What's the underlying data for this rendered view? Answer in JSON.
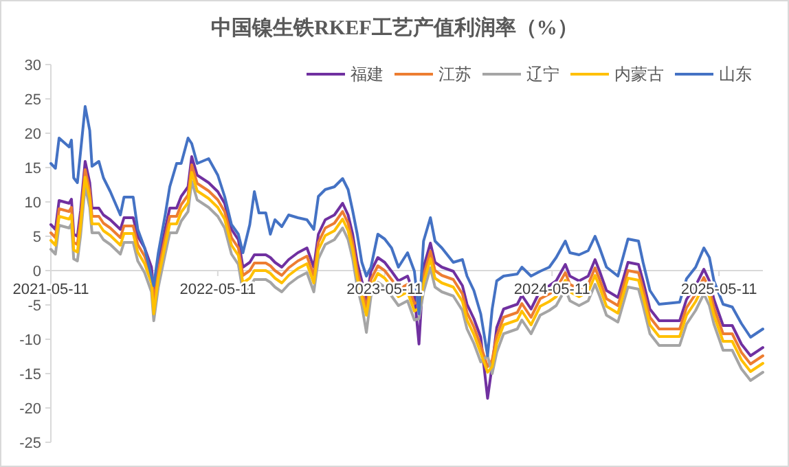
{
  "chart_data": {
    "type": "line",
    "title": "中国镍生铁RKEF工艺产值利润率（%）",
    "x": [
      "2021-05-11",
      "2021-05-21",
      "2021-05-29",
      "2021-06-20",
      "2021-06-25",
      "2021-06-30",
      "2021-07-08",
      "2021-07-15",
      "2021-07-25",
      "2021-08-04",
      "2021-08-09",
      "2021-08-24",
      "2021-09-03",
      "2021-09-18",
      "2021-10-10",
      "2021-10-18",
      "2021-11-07",
      "2021-11-17",
      "2021-12-02",
      "2021-12-17",
      "2021-12-22",
      "2022-01-01",
      "2022-01-16",
      "2022-01-26",
      "2022-02-10",
      "2022-02-20",
      "2022-03-07",
      "2022-03-15",
      "2022-03-27",
      "2022-04-21",
      "2022-05-11",
      "2022-05-26",
      "2022-06-10",
      "2022-06-25",
      "2022-07-05",
      "2022-07-20",
      "2022-07-30",
      "2022-08-09",
      "2022-08-24",
      "2022-09-03",
      "2022-09-13",
      "2022-09-28",
      "2022-10-13",
      "2022-11-02",
      "2022-11-22",
      "2022-12-07",
      "2022-12-17",
      "2023-01-01",
      "2023-01-21",
      "2023-02-08",
      "2023-02-20",
      "2023-03-02",
      "2023-03-12",
      "2023-03-22",
      "2023-04-01",
      "2023-04-11",
      "2023-04-26",
      "2023-05-11",
      "2023-05-26",
      "2023-06-10",
      "2023-06-30",
      "2023-07-15",
      "2023-07-25",
      "2023-08-04",
      "2023-08-19",
      "2023-08-29",
      "2023-09-13",
      "2023-10-08",
      "2023-10-28",
      "2023-11-07",
      "2023-11-22",
      "2023-12-07",
      "2023-12-22",
      "2024-01-01",
      "2024-01-11",
      "2024-01-26",
      "2024-02-25",
      "2024-03-06",
      "2024-03-26",
      "2024-04-15",
      "2024-05-05",
      "2024-05-20",
      "2024-06-09",
      "2024-06-19",
      "2024-07-09",
      "2024-07-29",
      "2024-08-13",
      "2024-08-23",
      "2024-09-07",
      "2024-10-02",
      "2024-10-24",
      "2024-11-16",
      "2024-11-26",
      "2024-12-11",
      "2024-12-31",
      "2025-02-14",
      "2025-03-01",
      "2025-03-21",
      "2025-04-08",
      "2025-04-20",
      "2025-04-30",
      "2025-05-20",
      "2025-06-09",
      "2025-06-29",
      "2025-07-19",
      "2025-08-15"
    ],
    "series": [
      {
        "name": "福建",
        "color": "#7030a0",
        "values": [
          6.7,
          6.0,
          10.2,
          9.8,
          10.4,
          5.3,
          5.0,
          8.7,
          15.9,
          12.8,
          9.1,
          9.1,
          8.1,
          7.4,
          6.0,
          7.7,
          7.7,
          5.0,
          3.3,
          0.5,
          -3.0,
          1.2,
          6.0,
          9.1,
          9.1,
          10.8,
          12.2,
          16.6,
          13.9,
          12.8,
          11.5,
          9.8,
          6.0,
          4.5,
          0.5,
          1.2,
          2.3,
          2.3,
          2.3,
          1.9,
          1.2,
          0.5,
          1.6,
          2.6,
          3.3,
          0.5,
          5.3,
          7.4,
          8.1,
          9.8,
          8.1,
          5.3,
          1.2,
          -1.5,
          -4.2,
          -0.1,
          1.9,
          1.2,
          -0.1,
          -1.5,
          -0.8,
          -3.6,
          -10.7,
          0.5,
          4.0,
          1.2,
          0.5,
          -0.1,
          -2.2,
          -4.9,
          -7.0,
          -9.7,
          -18.6,
          -13.8,
          -8.3,
          -5.6,
          -4.9,
          -3.6,
          -5.6,
          -2.9,
          -2.2,
          -1.5,
          0.9,
          -0.8,
          -1.5,
          -0.8,
          1.6,
          -0.1,
          -2.9,
          -3.9,
          1.2,
          0.9,
          -1.5,
          -5.6,
          -7.3,
          -7.3,
          -4.2,
          -2.2,
          0.2,
          -1.5,
          -4.2,
          -8.0,
          -8.0,
          -10.7,
          -12.4,
          -11.2
        ]
      },
      {
        "name": "江苏",
        "color": "#ed7d31",
        "values": [
          5.5,
          4.8,
          9.0,
          8.6,
          9.2,
          4.1,
          3.8,
          7.5,
          14.7,
          11.6,
          7.9,
          7.9,
          6.9,
          6.2,
          4.8,
          6.5,
          6.5,
          3.8,
          2.1,
          -0.7,
          -4.5,
          0.0,
          4.8,
          7.9,
          7.9,
          9.6,
          11.0,
          15.4,
          12.7,
          11.6,
          10.3,
          8.6,
          4.8,
          3.3,
          -0.7,
          0.0,
          1.1,
          1.1,
          1.1,
          0.7,
          0.0,
          -0.7,
          0.4,
          1.4,
          2.1,
          -0.7,
          4.1,
          6.2,
          6.9,
          8.6,
          6.9,
          4.1,
          0.0,
          -2.7,
          -5.4,
          -1.3,
          0.7,
          0.0,
          -1.3,
          -2.7,
          -2.0,
          -4.8,
          -4.5,
          -0.7,
          2.8,
          0.0,
          -0.7,
          -1.3,
          -3.4,
          -6.1,
          -8.2,
          -10.9,
          -14.0,
          -13.0,
          -9.5,
          -6.8,
          -6.1,
          -4.8,
          -6.8,
          -4.1,
          -3.4,
          -2.7,
          -0.3,
          -2.0,
          -2.7,
          -2.0,
          0.4,
          -1.3,
          -4.1,
          -5.1,
          0.0,
          -0.3,
          -2.7,
          -6.8,
          -8.5,
          -8.5,
          -5.4,
          -3.4,
          -1.0,
          -2.7,
          -5.4,
          -9.2,
          -9.2,
          -11.9,
          -13.6,
          -12.4
        ]
      },
      {
        "name": "辽宁",
        "color": "#a5a5a5",
        "values": [
          3.1,
          2.4,
          6.6,
          6.2,
          6.8,
          1.7,
          1.4,
          5.1,
          12.3,
          9.2,
          5.5,
          5.5,
          4.5,
          3.8,
          2.4,
          4.1,
          4.1,
          1.4,
          -0.3,
          -3.1,
          -7.3,
          -2.4,
          2.4,
          5.5,
          5.5,
          7.2,
          8.6,
          13.0,
          10.3,
          9.2,
          7.9,
          6.2,
          2.4,
          0.9,
          -3.1,
          -2.4,
          -1.3,
          -1.3,
          -1.3,
          -1.7,
          -2.4,
          -3.1,
          -2.0,
          -1.0,
          -0.3,
          -3.1,
          1.7,
          3.8,
          4.5,
          6.2,
          4.5,
          1.7,
          -2.4,
          -5.1,
          -9.0,
          -3.7,
          -1.7,
          -2.4,
          -3.7,
          -5.1,
          -4.4,
          -7.2,
          -7.0,
          -3.1,
          0.4,
          -2.4,
          -3.1,
          -3.7,
          -5.8,
          -8.5,
          -10.6,
          -13.3,
          -12.4,
          -15.0,
          -11.9,
          -9.2,
          -8.5,
          -7.2,
          -9.2,
          -6.5,
          -5.8,
          -5.1,
          -2.7,
          -4.4,
          -5.1,
          -4.4,
          -2.0,
          -3.7,
          -6.5,
          -7.5,
          -2.4,
          -2.7,
          -5.1,
          -9.2,
          -10.9,
          -10.9,
          -7.8,
          -5.8,
          -3.4,
          -5.1,
          -7.8,
          -11.6,
          -11.6,
          -14.3,
          -16.0,
          -14.8
        ]
      },
      {
        "name": "内蒙古",
        "color": "#ffc000",
        "values": [
          4.4,
          3.7,
          7.9,
          7.5,
          8.1,
          3.0,
          2.7,
          6.4,
          13.6,
          10.5,
          6.8,
          6.8,
          5.8,
          5.1,
          3.7,
          5.4,
          5.4,
          2.7,
          1.0,
          -1.8,
          -6.3,
          -1.1,
          3.7,
          6.8,
          6.8,
          8.5,
          9.9,
          14.3,
          11.6,
          10.5,
          9.2,
          7.5,
          3.7,
          2.2,
          -1.8,
          -1.1,
          0.0,
          0.0,
          0.0,
          -0.4,
          -1.1,
          -1.8,
          -0.7,
          0.3,
          1.0,
          -1.8,
          3.0,
          5.1,
          5.8,
          7.5,
          5.8,
          3.0,
          -1.1,
          -3.8,
          -6.5,
          -2.4,
          -0.4,
          -1.1,
          -2.4,
          -3.8,
          -3.1,
          -5.9,
          -5.5,
          -1.8,
          1.7,
          -1.1,
          -1.8,
          -2.4,
          -4.5,
          -7.2,
          -9.3,
          -12.0,
          -14.8,
          -14.0,
          -10.6,
          -7.9,
          -7.2,
          -5.9,
          -7.9,
          -5.2,
          -4.5,
          -3.8,
          -1.4,
          -3.1,
          -3.8,
          -3.1,
          -0.7,
          -2.4,
          -5.2,
          -6.2,
          -1.1,
          -1.4,
          -3.8,
          -7.9,
          -9.6,
          -9.6,
          -6.5,
          -4.5,
          -2.1,
          -3.8,
          -6.5,
          -10.3,
          -10.3,
          -13.0,
          -14.7,
          -13.5
        ]
      },
      {
        "name": "山东",
        "color": "#4472c4",
        "values": [
          15.6,
          14.9,
          19.3,
          18.0,
          19.0,
          13.5,
          12.8,
          17.3,
          23.9,
          20.4,
          15.2,
          15.9,
          13.5,
          11.5,
          8.1,
          10.7,
          10.7,
          6.0,
          3.3,
          -0.8,
          -2.2,
          2.6,
          8.1,
          12.2,
          15.6,
          15.6,
          19.3,
          18.5,
          15.6,
          16.3,
          13.9,
          10.8,
          6.7,
          5.3,
          2.6,
          6.7,
          11.5,
          8.4,
          8.4,
          5.3,
          7.4,
          6.4,
          8.1,
          7.7,
          7.4,
          6.0,
          10.8,
          11.8,
          12.2,
          13.4,
          11.8,
          8.7,
          5.3,
          1.2,
          -0.8,
          0.5,
          5.3,
          4.6,
          3.3,
          0.5,
          2.6,
          -0.1,
          -6.3,
          4.3,
          7.7,
          4.3,
          3.3,
          1.2,
          1.6,
          -0.8,
          -2.9,
          -6.3,
          -12.4,
          -5.6,
          -1.5,
          -0.8,
          -0.5,
          0.5,
          -0.8,
          -0.1,
          0.5,
          1.9,
          4.3,
          2.6,
          2.3,
          2.9,
          5.0,
          3.3,
          0.5,
          -0.8,
          4.6,
          4.3,
          1.2,
          -2.9,
          -4.9,
          -4.6,
          -1.2,
          0.5,
          3.3,
          1.9,
          -1.5,
          -4.9,
          -5.3,
          -7.7,
          -9.7,
          -8.5
        ]
      }
    ],
    "xlim": [
      "2021-05-11",
      "2025-08-15"
    ],
    "xticks": [
      "2021-05-11",
      "2022-05-11",
      "2023-05-11",
      "2024-05-11",
      "2025-05-11"
    ],
    "ylim": [
      -25,
      30
    ],
    "yticks": [
      -25,
      -20,
      -15,
      -10,
      -5,
      0,
      5,
      10,
      15,
      20,
      25,
      30
    ],
    "legend": "top right",
    "grid": false
  }
}
